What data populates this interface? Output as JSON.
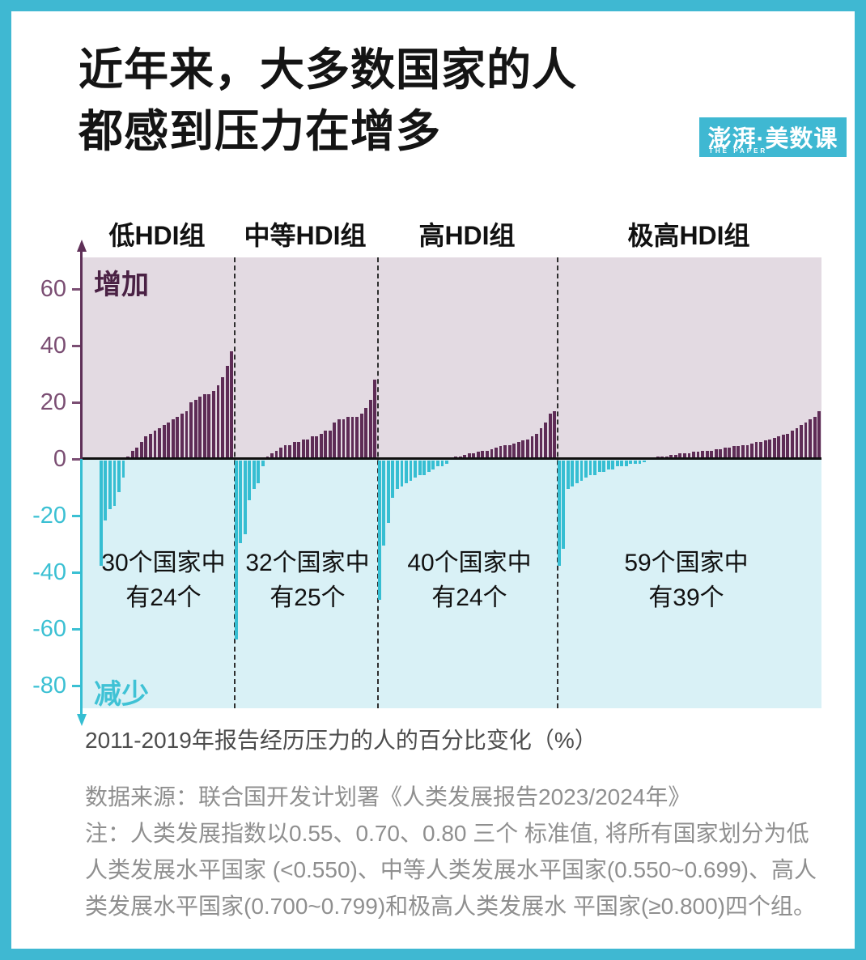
{
  "title": {
    "line1": "近年来，大多数国家的人",
    "line2": "都感到压力在增多"
  },
  "logo": {
    "brand": "澎湃·美数课",
    "sub": "THE PAPER"
  },
  "chart_data": {
    "type": "bar",
    "xlabel": "2011-2019年报告经历压力的人的百分比变化（%）",
    "unit": "%",
    "ylim": [
      -88,
      71
    ],
    "yticks": [
      60,
      40,
      20,
      0,
      -20,
      -40,
      -60,
      -80
    ],
    "increase_label": "增加",
    "decrease_label": "减少",
    "colors": {
      "increase_bar": "#5e2c56",
      "decrease_bar": "#36bed2",
      "increase_bg": "#e3dae2",
      "decrease_bg": "#d9f1f6",
      "axis_positive": "#7b4e73",
      "axis_negative": "#3bc0d3",
      "zero_line": "#101010",
      "frame": "#3fb8d2"
    },
    "groups": [
      {
        "label": "低HDI组",
        "countries_total": 30,
        "countries_increase": 24,
        "annotation_line1": "30个国家中",
        "annotation_line2": "有24个",
        "values": [
          -37,
          -21,
          -17,
          -16,
          -11,
          -6,
          1,
          3,
          4,
          6,
          8,
          9,
          10,
          11,
          12,
          13,
          14,
          15,
          16,
          17,
          20,
          21,
          22,
          23,
          23,
          24,
          26,
          29,
          33,
          38
        ]
      },
      {
        "label": "中等HDI组",
        "countries_total": 32,
        "countries_increase": 25,
        "annotation_line1": "32个国家中",
        "annotation_line2": "有25个",
        "values": [
          -63,
          -29,
          -26,
          -14,
          -10,
          -8,
          -2,
          1,
          2,
          3,
          4,
          5,
          5,
          6,
          6,
          7,
          7,
          8,
          8,
          9,
          10,
          10,
          13,
          14,
          14,
          15,
          15,
          15,
          16,
          18,
          21,
          28
        ]
      },
      {
        "label": "高HDI组",
        "countries_total": 40,
        "countries_increase": 24,
        "annotation_line1": "40个国家中",
        "annotation_line2": "有24个",
        "values": [
          -49,
          -30,
          -22,
          -13,
          -10,
          -9,
          -8,
          -7,
          -6,
          -5,
          -5,
          -4,
          -3,
          -2,
          -2,
          -1,
          0.5,
          1,
          1,
          1.5,
          2,
          2,
          2.5,
          3,
          3,
          3.5,
          4,
          4.5,
          5,
          5,
          5.5,
          6,
          6.5,
          7,
          8,
          9,
          11,
          13,
          16,
          17
        ]
      },
      {
        "label": "极高HDI组",
        "countries_total": 59,
        "countries_increase": 39,
        "annotation_line1": "59个国家中",
        "annotation_line2": "有39个",
        "values": [
          -37,
          -31,
          -10,
          -9,
          -8,
          -7,
          -6,
          -5,
          -5,
          -4,
          -4,
          -3,
          -3,
          -2,
          -2,
          -2,
          -1,
          -1,
          -1,
          -0.5,
          0.5,
          0.5,
          1,
          1,
          1,
          1.5,
          1.5,
          2,
          2,
          2,
          2.5,
          2.5,
          3,
          3,
          3,
          3.5,
          3.5,
          4,
          4,
          4.5,
          4.5,
          5,
          5,
          5.5,
          6,
          6,
          6.5,
          7,
          7.5,
          8,
          8.5,
          9,
          10,
          11,
          12,
          13,
          14,
          15,
          17
        ]
      }
    ]
  },
  "footer": {
    "source": "数据来源：联合国开发计划署《人类发展报告2023/2024年》",
    "note_line1": "注：人类发展指数以0.55、0.70、0.80 三个 标准值, 将所有国家划分为低",
    "note_line2": "人类发展水平国家 (<0.550)、中等人类发展水平国家(0.550~0.699)、高人",
    "note_line3": "类发展水平国家(0.700~0.799)和极高人类发展水 平国家(≥0.800)四个组。"
  }
}
